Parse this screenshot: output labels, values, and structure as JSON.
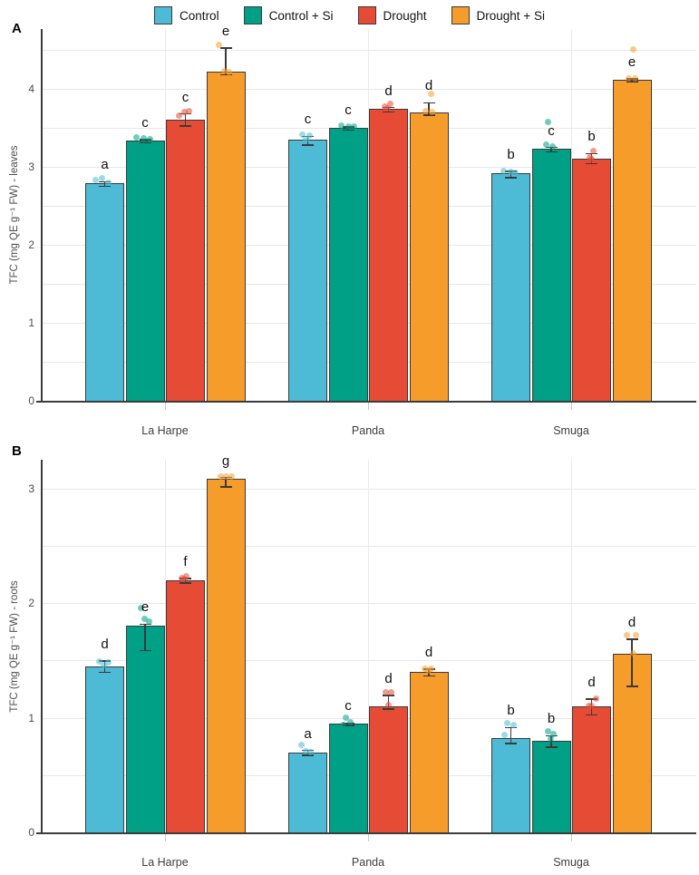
{
  "legend": {
    "items": [
      {
        "label": "Control",
        "color": "#4DBBD5"
      },
      {
        "label": "Control + Si",
        "color": "#00A087"
      },
      {
        "label": "Drought",
        "color": "#E64B35"
      },
      {
        "label": "Drought + Si",
        "color": "#F59C2B"
      }
    ]
  },
  "chart_data": [
    {
      "id": "A",
      "type": "bar",
      "panel_label": "A",
      "ylabel": "TFC  (mg QE g⁻¹ FW) - leaves",
      "xlabel": "",
      "categories": [
        "La Harpe",
        "Panda",
        "Smuga"
      ],
      "ylim": [
        0,
        4.77
      ],
      "yticks": [
        0,
        1,
        2,
        3,
        4
      ],
      "grid_step": 0.5,
      "grid": true,
      "legend_position": "top",
      "series": [
        {
          "name": "Control",
          "color": "#4DBBD5",
          "values": [
            2.79,
            3.35,
            2.92
          ],
          "err_up": [
            0.03,
            0.05,
            0.03
          ],
          "err_down": [
            0.03,
            0.06,
            0.05
          ],
          "letters": [
            "a",
            "c",
            "b"
          ],
          "points": [
            [
              [
                -10,
                2.83
              ],
              [
                -3,
                2.85
              ],
              [
                4,
                2.8
              ]
            ],
            [
              [
                -6,
                3.41
              ],
              [
                2,
                3.4
              ],
              [
                -2,
                3.36
              ]
            ],
            [
              [
                -8,
                2.95
              ],
              [
                0,
                2.94
              ],
              [
                5,
                2.93
              ]
            ]
          ]
        },
        {
          "name": "Control + Si",
          "color": "#00A087",
          "values": [
            3.34,
            3.5,
            3.23
          ],
          "err_up": [
            0.02,
            0.02,
            0.03
          ],
          "err_down": [
            0.02,
            0.02,
            0.03
          ],
          "letters": [
            "c",
            "c",
            "c"
          ],
          "points": [
            [
              [
                -10,
                3.38
              ],
              [
                -2,
                3.37
              ],
              [
                5,
                3.35
              ]
            ],
            [
              [
                -8,
                3.53
              ],
              [
                0,
                3.52
              ],
              [
                6,
                3.52
              ]
            ],
            [
              [
                -6,
                3.28
              ],
              [
                1,
                3.26
              ],
              [
                -4,
                3.58
              ]
            ]
          ]
        },
        {
          "name": "Drought",
          "color": "#E64B35",
          "values": [
            3.6,
            3.74,
            3.1
          ],
          "err_up": [
            0.09,
            0.03,
            0.08
          ],
          "err_down": [
            0.07,
            0.03,
            0.05
          ],
          "letters": [
            "c",
            "d",
            "b"
          ],
          "points": [
            [
              [
                -7,
                3.66
              ],
              [
                -1,
                3.7
              ],
              [
                4,
                3.72
              ]
            ],
            [
              [
                -4,
                3.77
              ],
              [
                2,
                3.81
              ],
              [
                -1,
                3.75
              ]
            ],
            [
              [
                2,
                3.2
              ],
              [
                -2,
                3.12
              ],
              [
                0,
                3.1
              ]
            ]
          ]
        },
        {
          "name": "Drought + Si",
          "color": "#F59C2B",
          "values": [
            4.22,
            3.7,
            4.12
          ],
          "err_up": [
            0.31,
            0.13,
            0.02
          ],
          "err_down": [
            0.03,
            0.03,
            0.02
          ],
          "letters": [
            "e",
            "d",
            "e"
          ],
          "points": [
            [
              [
                -8,
                4.57
              ],
              [
                3,
                4.22
              ],
              [
                -2,
                4.23
              ]
            ],
            [
              [
                2,
                3.94
              ],
              [
                -4,
                3.72
              ],
              [
                3,
                3.7
              ]
            ],
            [
              [
                1,
                4.51
              ],
              [
                -4,
                4.13
              ],
              [
                3,
                4.13
              ]
            ]
          ]
        }
      ]
    },
    {
      "id": "B",
      "type": "bar",
      "panel_label": "B",
      "ylabel": "TFC  (mg QE g⁻¹ FW) - roots",
      "xlabel": "",
      "categories": [
        "La Harpe",
        "Panda",
        "Smuga"
      ],
      "ylim": [
        0,
        3.25
      ],
      "yticks": [
        0,
        1,
        2,
        3
      ],
      "grid_step": 0.5,
      "grid": true,
      "legend_position": "none",
      "series": [
        {
          "name": "Control",
          "color": "#4DBBD5",
          "values": [
            1.45,
            0.7,
            0.82
          ],
          "err_up": [
            0.05,
            0.02,
            0.1
          ],
          "err_down": [
            0.05,
            0.02,
            0.04
          ],
          "letters": [
            "d",
            "a",
            "b"
          ],
          "points": [
            [
              [
                -6,
                1.49
              ],
              [
                4,
                1.48
              ],
              [
                -1,
                1.46
              ]
            ],
            [
              [
                -7,
                0.76
              ],
              [
                -2,
                0.71
              ],
              [
                3,
                0.7
              ]
            ],
            [
              [
                -4,
                0.95
              ],
              [
                3,
                0.94
              ],
              [
                -7,
                0.85
              ]
            ]
          ]
        },
        {
          "name": "Control + Si",
          "color": "#00A087",
          "values": [
            1.8,
            0.95,
            0.8
          ],
          "err_up": [
            0.02,
            0.01,
            0.05
          ],
          "err_down": [
            0.21,
            0.01,
            0.05
          ],
          "letters": [
            "e",
            "c",
            "b"
          ],
          "points": [
            [
              [
                -5,
                1.96
              ],
              [
                -1,
                1.86
              ],
              [
                4,
                1.84
              ]
            ],
            [
              [
                -3,
                1.0
              ],
              [
                2,
                0.96
              ],
              [
                -6,
                0.94
              ]
            ],
            [
              [
                -4,
                0.88
              ],
              [
                2,
                0.86
              ],
              [
                -1,
                0.82
              ]
            ]
          ]
        },
        {
          "name": "Drought",
          "color": "#E64B35",
          "values": [
            2.2,
            1.1,
            1.1
          ],
          "err_up": [
            0.02,
            0.1,
            0.07
          ],
          "err_down": [
            0.02,
            0.02,
            0.07
          ],
          "letters": [
            "f",
            "d",
            "d"
          ],
          "points": [
            [
              [
                -4,
                2.22
              ],
              [
                1,
                2.23
              ],
              [
                -1,
                2.21
              ]
            ],
            [
              [
                -3,
                1.22
              ],
              [
                3,
                1.22
              ],
              [
                0,
                1.11
              ]
            ],
            [
              [
                5,
                1.17
              ],
              [
                0,
                1.1
              ],
              [
                -3,
                1.1
              ]
            ]
          ]
        },
        {
          "name": "Drought + Si",
          "color": "#F59C2B",
          "values": [
            3.08,
            1.4,
            1.56
          ],
          "err_up": [
            0.02,
            0.03,
            0.13
          ],
          "err_down": [
            0.06,
            0.03,
            0.28
          ],
          "letters": [
            "g",
            "d",
            "d"
          ],
          "points": [
            [
              [
                -6,
                3.1
              ],
              [
                0,
                3.1
              ],
              [
                6,
                3.1
              ]
            ],
            [
              [
                -5,
                1.43
              ],
              [
                2,
                1.43
              ],
              [
                -1,
                1.41
              ]
            ],
            [
              [
                -6,
                1.72
              ],
              [
                4,
                1.72
              ],
              [
                1,
                1.56
              ]
            ]
          ]
        }
      ]
    }
  ]
}
